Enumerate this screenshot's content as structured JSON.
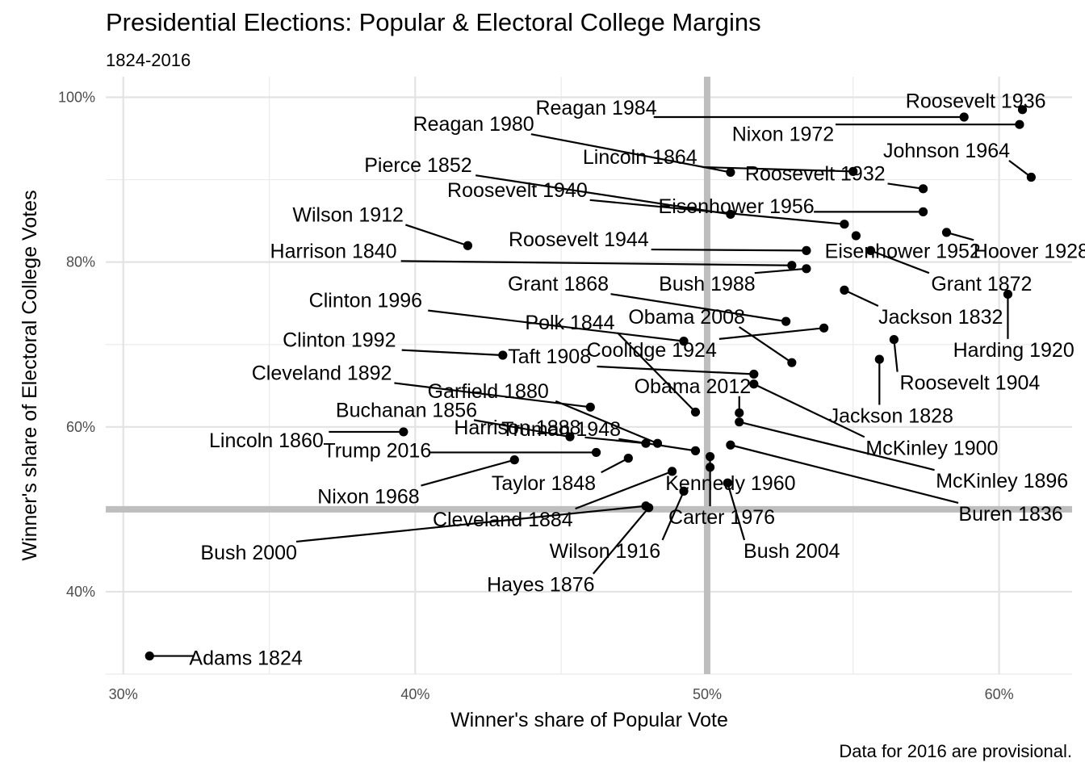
{
  "chart_data": {
    "type": "scatter",
    "title": "Presidential Elections: Popular & Electoral College Margins",
    "subtitle": "1824-2016",
    "caption": "Data for 2016 are provisional.",
    "xlabel": "Winner's share of Popular Vote",
    "ylabel": "Winner's share of Electoral College Votes",
    "xlim": [
      0.294,
      0.625
    ],
    "ylim": [
      0.3,
      1.025
    ],
    "xticks": [
      0.3,
      0.4,
      0.5,
      0.6
    ],
    "xtick_labels": [
      "30%",
      "40%",
      "50%",
      "60%"
    ],
    "yticks": [
      0.4,
      0.6,
      0.8,
      1.0
    ],
    "ytick_labels": [
      "40%",
      "60%",
      "80%",
      "100%"
    ],
    "reference_lines": {
      "x": 0.5,
      "y": 0.5
    },
    "grid": true,
    "points": [
      {
        "label": "Adams 1824",
        "x": 0.309,
        "y": 0.322,
        "lx": 0.342,
        "ly": 0.32
      },
      {
        "label": "Jackson 1828",
        "x": 0.559,
        "y": 0.682,
        "lx": 0.563,
        "ly": 0.614
      },
      {
        "label": "Jackson 1832",
        "x": 0.547,
        "y": 0.766,
        "lx": 0.58,
        "ly": 0.734
      },
      {
        "label": "Buren 1836",
        "x": 0.508,
        "y": 0.578,
        "lx": 0.604,
        "ly": 0.495
      },
      {
        "label": "Harrison 1840",
        "x": 0.529,
        "y": 0.796,
        "lx": 0.372,
        "ly": 0.814
      },
      {
        "label": "Polk 1844",
        "x": 0.496,
        "y": 0.618,
        "lx": 0.453,
        "ly": 0.727
      },
      {
        "label": "Taylor 1848",
        "x": 0.473,
        "y": 0.562,
        "lx": 0.444,
        "ly": 0.532
      },
      {
        "label": "Pierce 1852",
        "x": 0.508,
        "y": 0.858,
        "lx": 0.401,
        "ly": 0.918
      },
      {
        "label": "Buchanan 1856",
        "x": 0.453,
        "y": 0.588,
        "lx": 0.397,
        "ly": 0.621
      },
      {
        "label": "Lincoln 1860",
        "x": 0.396,
        "y": 0.594,
        "lx": 0.349,
        "ly": 0.584
      },
      {
        "label": "Lincoln 1864",
        "x": 0.55,
        "y": 0.91,
        "lx": 0.477,
        "ly": 0.928
      },
      {
        "label": "Grant 1868",
        "x": 0.527,
        "y": 0.728,
        "lx": 0.449,
        "ly": 0.774
      },
      {
        "label": "Grant 1872",
        "x": 0.556,
        "y": 0.814,
        "lx": 0.594,
        "ly": 0.774
      },
      {
        "label": "Hayes 1876",
        "x": 0.48,
        "y": 0.502,
        "lx": 0.443,
        "ly": 0.409
      },
      {
        "label": "Garfield 1880",
        "x": 0.483,
        "y": 0.58,
        "lx": 0.425,
        "ly": 0.644
      },
      {
        "label": "Cleveland 1884",
        "x": 0.488,
        "y": 0.546,
        "lx": 0.43,
        "ly": 0.488
      },
      {
        "label": "Harrison 1888",
        "x": 0.479,
        "y": 0.58,
        "lx": 0.435,
        "ly": 0.6
      },
      {
        "label": "Cleveland 1892",
        "x": 0.46,
        "y": 0.624,
        "lx": 0.368,
        "ly": 0.666
      },
      {
        "label": "McKinley 1896",
        "x": 0.511,
        "y": 0.606,
        "lx": 0.601,
        "ly": 0.535
      },
      {
        "label": "McKinley 1900",
        "x": 0.516,
        "y": 0.652,
        "lx": 0.577,
        "ly": 0.575
      },
      {
        "label": "Roosevelt 1904",
        "x": 0.564,
        "y": 0.706,
        "lx": 0.59,
        "ly": 0.654
      },
      {
        "label": "Taft 1908",
        "x": 0.516,
        "y": 0.664,
        "lx": 0.446,
        "ly": 0.686
      },
      {
        "label": "Wilson 1912",
        "x": 0.418,
        "y": 0.82,
        "lx": 0.377,
        "ly": 0.858
      },
      {
        "label": "Wilson 1916",
        "x": 0.492,
        "y": 0.522,
        "lx": 0.465,
        "ly": 0.45
      },
      {
        "label": "Harding 1920",
        "x": 0.603,
        "y": 0.761,
        "lx": 0.605,
        "ly": 0.694
      },
      {
        "label": "Coolidge 1924",
        "x": 0.54,
        "y": 0.72,
        "lx": 0.481,
        "ly": 0.694
      },
      {
        "label": "Hoover 1928",
        "x": 0.582,
        "y": 0.836,
        "lx": 0.611,
        "ly": 0.814
      },
      {
        "label": "Roosevelt 1932",
        "x": 0.574,
        "y": 0.889,
        "lx": 0.537,
        "ly": 0.908
      },
      {
        "label": "Roosevelt 1936",
        "x": 0.608,
        "y": 0.985,
        "lx": 0.592,
        "ly": 0.996
      },
      {
        "label": "Roosevelt 1940",
        "x": 0.547,
        "y": 0.846,
        "lx": 0.435,
        "ly": 0.888
      },
      {
        "label": "Roosevelt 1944",
        "x": 0.534,
        "y": 0.814,
        "lx": 0.456,
        "ly": 0.828
      },
      {
        "label": "Truman 1948",
        "x": 0.496,
        "y": 0.571,
        "lx": 0.45,
        "ly": 0.598
      },
      {
        "label": "Eisenhower 1952",
        "x": 0.551,
        "y": 0.832,
        "lx": 0.567,
        "ly": 0.814
      },
      {
        "label": "Eisenhower 1956",
        "x": 0.574,
        "y": 0.861,
        "lx": 0.51,
        "ly": 0.868
      },
      {
        "label": "Kennedy 1960",
        "x": 0.501,
        "y": 0.564,
        "lx": 0.508,
        "ly": 0.532
      },
      {
        "label": "Johnson 1964",
        "x": 0.611,
        "y": 0.903,
        "lx": 0.582,
        "ly": 0.936
      },
      {
        "label": "Nixon 1968",
        "x": 0.434,
        "y": 0.56,
        "lx": 0.384,
        "ly": 0.516
      },
      {
        "label": "Nixon 1972",
        "x": 0.607,
        "y": 0.967,
        "lx": 0.526,
        "ly": 0.956
      },
      {
        "label": "Carter 1976",
        "x": 0.501,
        "y": 0.551,
        "lx": 0.505,
        "ly": 0.491
      },
      {
        "label": "Reagan 1980",
        "x": 0.508,
        "y": 0.909,
        "lx": 0.42,
        "ly": 0.968
      },
      {
        "label": "Reagan 1984",
        "x": 0.588,
        "y": 0.976,
        "lx": 0.462,
        "ly": 0.988
      },
      {
        "label": "Bush 1988",
        "x": 0.534,
        "y": 0.792,
        "lx": 0.5,
        "ly": 0.774
      },
      {
        "label": "Clinton 1992",
        "x": 0.43,
        "y": 0.687,
        "lx": 0.374,
        "ly": 0.706
      },
      {
        "label": "Clinton 1996",
        "x": 0.492,
        "y": 0.704,
        "lx": 0.383,
        "ly": 0.754
      },
      {
        "label": "Bush 2000",
        "x": 0.479,
        "y": 0.504,
        "lx": 0.343,
        "ly": 0.448
      },
      {
        "label": "Bush 2004",
        "x": 0.507,
        "y": 0.532,
        "lx": 0.529,
        "ly": 0.45
      },
      {
        "label": "Obama 2008",
        "x": 0.529,
        "y": 0.678,
        "lx": 0.493,
        "ly": 0.734
      },
      {
        "label": "Obama 2012",
        "x": 0.511,
        "y": 0.617,
        "lx": 0.495,
        "ly": 0.65
      },
      {
        "label": "Trump 2016",
        "x": 0.462,
        "y": 0.569,
        "lx": 0.387,
        "ly": 0.572
      }
    ]
  }
}
